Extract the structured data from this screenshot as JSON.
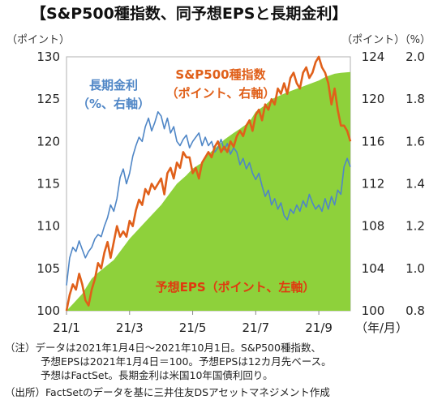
{
  "title": "【S&P500種指数、同予想EPSと長期金利】",
  "unit_left": "（ポイント）",
  "unit_right": "（ポイント）（%）",
  "x_unit": "（年/月）",
  "notes": {
    "line1": "（注）データは2021年1月4日～2021年10月1日。S&P500種指数、",
    "line2": "予想EPSは2021年1月4日＝100。予想EPSは12カ月先ベース。",
    "line3": "予想はFactSet。長期金利は米国10年国債利回り。",
    "source": "（出所）FactSetのデータを基に三井住友DSアセットマネジメント作成"
  },
  "chart_data": {
    "type": "line",
    "x_tick_labels": [
      "21/1",
      "21/3",
      "21/5",
      "21/7",
      "21/9"
    ],
    "x_tick_months": [
      0,
      2,
      4,
      6,
      8
    ],
    "x_range": [
      0,
      9
    ],
    "axis_left": {
      "ticks": [
        "100",
        "105",
        "110",
        "115",
        "120",
        "125",
        "130"
      ],
      "ylim": [
        100,
        130
      ]
    },
    "axis_right_sp": {
      "ticks": [
        "100",
        "104",
        "108",
        "112",
        "116",
        "120",
        "124"
      ],
      "ylim": [
        100,
        124
      ]
    },
    "axis_right_yield": {
      "ticks": [
        "0.8",
        "1.0",
        "1.2",
        "1.4",
        "1.6",
        "1.8",
        "2.0"
      ],
      "ylim": [
        0.8,
        2.0
      ]
    },
    "colors": {
      "eps": "#8ed13b",
      "sp": "#e0601a",
      "yield": "#4f86c6"
    },
    "series": [
      {
        "key": "eps",
        "name": "予想EPS（ポイント、左軸）",
        "axis": "left",
        "style": "area",
        "x": [
          0,
          0.2,
          0.5,
          0.8,
          1.0,
          1.5,
          2.0,
          2.5,
          3.0,
          3.3,
          3.5,
          3.8,
          4.0,
          4.3,
          4.5,
          4.8,
          5.0,
          5.3,
          5.5,
          5.8,
          6.0,
          6.3,
          6.5,
          7.0,
          7.5,
          8.0,
          8.2,
          8.5,
          8.7,
          9.0
        ],
        "y": [
          100.0,
          100.8,
          102.0,
          103.8,
          104.5,
          106.0,
          108.5,
          110.5,
          112.5,
          114.0,
          115.0,
          116.0,
          116.8,
          117.5,
          118.5,
          119.5,
          120.2,
          121.0,
          121.5,
          122.3,
          123.5,
          124.3,
          125.0,
          125.8,
          126.5,
          127.2,
          127.6,
          128.0,
          128.1,
          128.2
        ]
      },
      {
        "key": "sp",
        "name": "S&P500種指数（ポイント、右軸）",
        "axis": "right",
        "style": "line",
        "x": [
          0,
          0.1,
          0.2,
          0.3,
          0.4,
          0.5,
          0.6,
          0.7,
          0.8,
          0.9,
          1.0,
          1.1,
          1.2,
          1.3,
          1.4,
          1.5,
          1.6,
          1.7,
          1.8,
          1.9,
          2.0,
          2.1,
          2.2,
          2.3,
          2.4,
          2.5,
          2.6,
          2.7,
          2.8,
          2.9,
          3.0,
          3.1,
          3.2,
          3.3,
          3.4,
          3.5,
          3.6,
          3.7,
          3.8,
          3.9,
          4.0,
          4.1,
          4.2,
          4.3,
          4.4,
          4.5,
          4.6,
          4.7,
          4.8,
          4.9,
          5.0,
          5.1,
          5.2,
          5.3,
          5.4,
          5.5,
          5.6,
          5.7,
          5.8,
          5.9,
          6.0,
          6.1,
          6.2,
          6.3,
          6.4,
          6.5,
          6.6,
          6.7,
          6.8,
          6.9,
          7.0,
          7.1,
          7.2,
          7.3,
          7.4,
          7.5,
          7.6,
          7.7,
          7.8,
          7.9,
          8.0,
          8.1,
          8.2,
          8.3,
          8.4,
          8.5,
          8.6,
          8.7,
          8.8,
          8.9,
          9.0
        ],
        "y": [
          100.0,
          101.5,
          102.5,
          102.0,
          103.5,
          102.5,
          101.0,
          100.5,
          102.0,
          103.0,
          104.5,
          104.0,
          105.5,
          106.5,
          105.0,
          106.5,
          108.0,
          107.0,
          107.5,
          107.0,
          108.5,
          108.0,
          109.5,
          110.5,
          110.0,
          111.5,
          111.0,
          112.0,
          111.5,
          112.0,
          112.5,
          111.0,
          113.0,
          113.5,
          112.5,
          114.0,
          113.5,
          115.0,
          114.5,
          114.5,
          113.0,
          113.5,
          112.5,
          114.0,
          114.5,
          115.0,
          114.5,
          115.5,
          116.0,
          115.0,
          115.5,
          115.0,
          116.0,
          115.5,
          116.5,
          117.0,
          116.5,
          117.5,
          118.0,
          117.0,
          118.5,
          119.0,
          118.0,
          119.5,
          119.0,
          120.0,
          119.5,
          121.0,
          120.5,
          121.5,
          120.5,
          122.0,
          122.5,
          121.5,
          121.0,
          122.5,
          123.0,
          122.0,
          122.5,
          123.5,
          124.0,
          123.0,
          122.5,
          121.5,
          119.5,
          121.0,
          119.0,
          117.5,
          117.5,
          117.0,
          116.0
        ]
      },
      {
        "key": "yield",
        "name": "長期金利（%、右軸）",
        "axis": "right_yield",
        "style": "line",
        "x": [
          0,
          0.1,
          0.2,
          0.3,
          0.4,
          0.5,
          0.6,
          0.7,
          0.8,
          0.9,
          1.0,
          1.1,
          1.2,
          1.3,
          1.4,
          1.5,
          1.6,
          1.7,
          1.8,
          1.9,
          2.0,
          2.1,
          2.2,
          2.3,
          2.4,
          2.5,
          2.6,
          2.7,
          2.8,
          2.9,
          3.0,
          3.1,
          3.2,
          3.3,
          3.4,
          3.5,
          3.6,
          3.7,
          3.8,
          3.9,
          4.0,
          4.1,
          4.2,
          4.3,
          4.4,
          4.5,
          4.6,
          4.7,
          4.8,
          4.9,
          5.0,
          5.1,
          5.2,
          5.3,
          5.4,
          5.5,
          5.6,
          5.7,
          5.8,
          5.9,
          6.0,
          6.1,
          6.2,
          6.3,
          6.4,
          6.5,
          6.6,
          6.7,
          6.8,
          6.9,
          7.0,
          7.1,
          7.2,
          7.3,
          7.4,
          7.5,
          7.6,
          7.7,
          7.8,
          7.9,
          8.0,
          8.1,
          8.2,
          8.3,
          8.4,
          8.5,
          8.6,
          8.7,
          8.8,
          8.9,
          9.0
        ],
        "y": [
          0.92,
          1.05,
          1.1,
          1.08,
          1.13,
          1.09,
          1.05,
          1.08,
          1.1,
          1.14,
          1.16,
          1.15,
          1.2,
          1.24,
          1.3,
          1.27,
          1.33,
          1.43,
          1.47,
          1.4,
          1.45,
          1.53,
          1.58,
          1.62,
          1.6,
          1.67,
          1.71,
          1.65,
          1.69,
          1.74,
          1.72,
          1.66,
          1.71,
          1.64,
          1.67,
          1.6,
          1.58,
          1.61,
          1.63,
          1.57,
          1.6,
          1.62,
          1.64,
          1.58,
          1.62,
          1.58,
          1.6,
          1.55,
          1.57,
          1.61,
          1.56,
          1.59,
          1.54,
          1.57,
          1.55,
          1.49,
          1.52,
          1.47,
          1.5,
          1.45,
          1.42,
          1.45,
          1.39,
          1.34,
          1.37,
          1.3,
          1.33,
          1.28,
          1.31,
          1.25,
          1.23,
          1.28,
          1.26,
          1.3,
          1.27,
          1.32,
          1.29,
          1.35,
          1.31,
          1.28,
          1.3,
          1.27,
          1.33,
          1.28,
          1.34,
          1.3,
          1.37,
          1.35,
          1.48,
          1.52,
          1.48
        ]
      }
    ],
    "annotations": [
      {
        "key": "yield",
        "line1": "長期金利",
        "line2": "（%、右軸）"
      },
      {
        "key": "sp",
        "line1": "S&P500種指数",
        "line2": "（ポイント、右軸）"
      },
      {
        "key": "eps",
        "line1": "予想EPS（ポイント、左軸）",
        "line2": ""
      }
    ]
  }
}
